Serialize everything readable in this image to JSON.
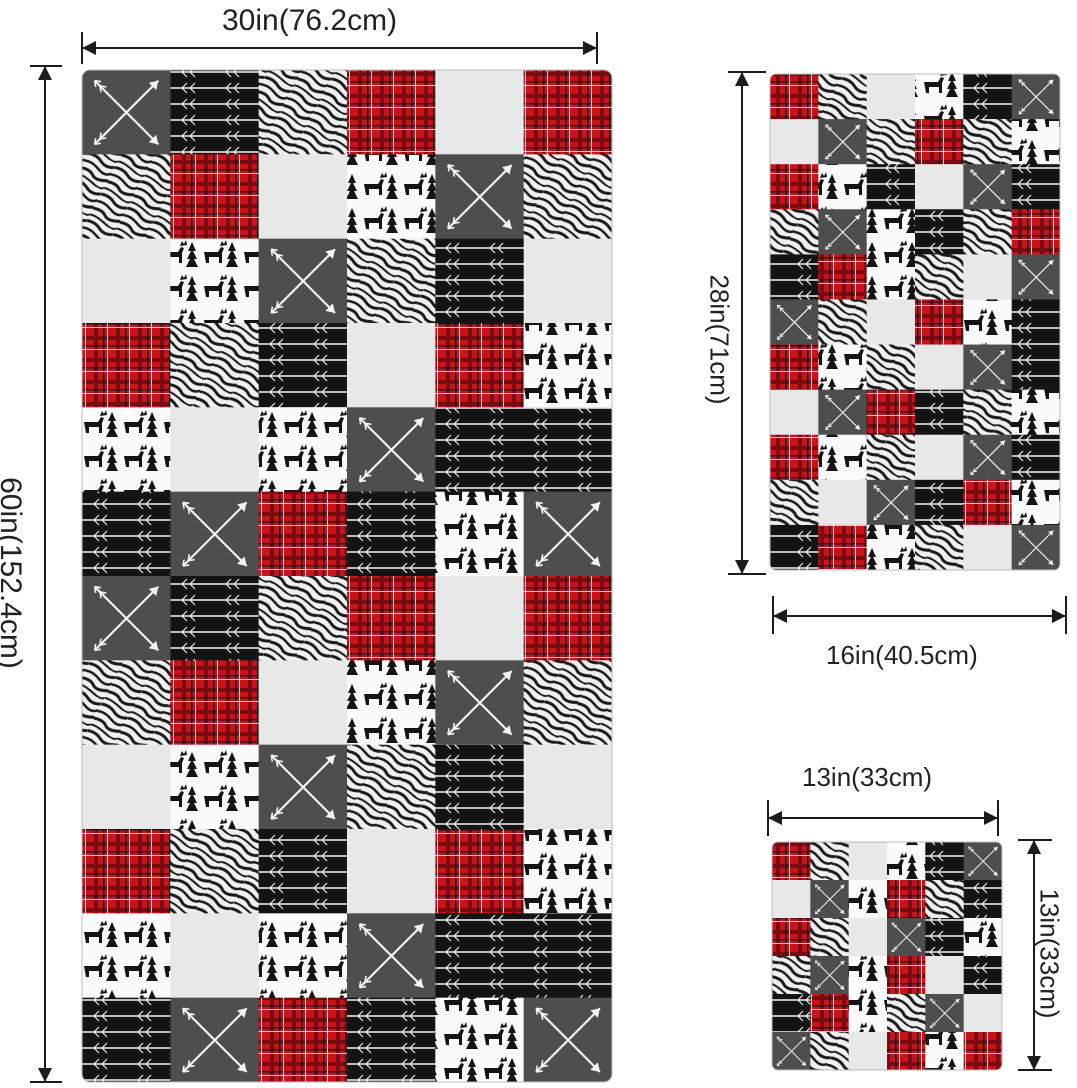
{
  "dimensions": {
    "bath_width": "30in(76.2cm)",
    "bath_height": "60in(152.4cm)",
    "hand_height": "28in(71cm)",
    "hand_width": "16in(40.5cm)",
    "wash_width": "13in(33cm)",
    "wash_height": "13in(33cm)"
  },
  "palette": {
    "red": "#c8131b",
    "dark_gray": "#4e4e4e",
    "light_gray": "#e8e8e8",
    "black": "#161616",
    "white": "#fafafa"
  },
  "pattern_names": [
    "arrows-cross",
    "arrows-lines",
    "zebra",
    "plaid",
    "solid-light",
    "moose-trees"
  ]
}
